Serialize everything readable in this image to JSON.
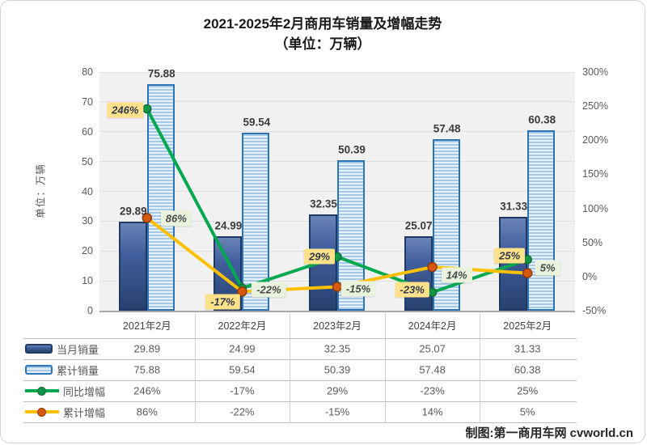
{
  "title": {
    "line1": "2021-2025年2月商用车销量及增幅走势",
    "line2": "（单位：万辆）"
  },
  "y_axis_title": "单位：万辆",
  "credit": "制图:第一商用车网 cvworld.cn",
  "chart_data": {
    "type": "bar+line combo",
    "categories": [
      "2021年2月",
      "2022年2月",
      "2023年2月",
      "2024年2月",
      "2025年2月"
    ],
    "bar_series": [
      {
        "name": "当月销量",
        "values": [
          29.89,
          24.99,
          32.35,
          25.07,
          31.33
        ],
        "style": "solid-dark-blue"
      },
      {
        "name": "累计销量",
        "values": [
          75.88,
          59.54,
          50.39,
          57.48,
          60.38
        ],
        "style": "striped-light-blue"
      }
    ],
    "line_series": [
      {
        "name": "同比增幅",
        "values_percent": [
          246,
          -17,
          29,
          -23,
          25
        ],
        "label_style": "yellow"
      },
      {
        "name": "累计增幅",
        "values_percent": [
          86,
          -22,
          -15,
          14,
          5
        ],
        "label_style": "pale-green"
      }
    ],
    "left_axis": {
      "min": 0,
      "max": 80,
      "step": 10
    },
    "right_axis": {
      "min": -50,
      "max": 300,
      "step": 50,
      "suffix": "%"
    },
    "grid": true,
    "legend_position": "table-left-column"
  },
  "colors": {
    "monthly_bar_top": "#6A83B8",
    "monthly_bar_mid": "#415F9D",
    "monthly_bar_bottom": "#27426F",
    "monthly_bar_border": "#1F3864",
    "cumulative_bar_stripe": "#A6C9E8",
    "cumulative_bar_stripe_light": "#E6F0F9",
    "cumulative_bar_border": "#2E74B5",
    "yoy_line": "#00A94F",
    "yoy_marker": "#129447",
    "yoy_marker_edge": "#0E6F34",
    "yoy_label_bg": "#FFE18A",
    "yoy_label_text": "#2F3A4D",
    "cumulative_line": "#FFC000",
    "cumulative_marker": "#D6590F",
    "cumulative_marker_edge": "#8F3B05",
    "cumulative_label_bg": "#E9F2DC",
    "cumulative_label_text": "#4A4A4A",
    "plot_bg": "#F1F1F1",
    "gridline": "#E0E0E0",
    "axis_line": "#A8A8A8",
    "table_line": "#BFBFBF",
    "divider_line": "#CDCDCD"
  }
}
